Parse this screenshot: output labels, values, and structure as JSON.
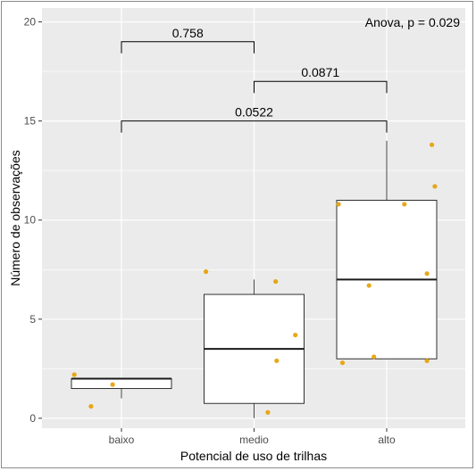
{
  "chart_data": {
    "type": "boxplot",
    "xlabel": "Potencial de uso de trilhas",
    "ylabel": "Número de observações",
    "categories": [
      "baixo",
      "medio",
      "alto"
    ],
    "ylim": [
      -0.5,
      20.7
    ],
    "yticks": [
      0,
      5,
      10,
      15,
      20
    ],
    "grid": true,
    "legend": "none",
    "annotation": "Anova, p = 0.029",
    "boxes": [
      {
        "category": "baixo",
        "min": 1,
        "q1": 1.5,
        "median": 2,
        "q3": 2,
        "max": 2
      },
      {
        "category": "medio",
        "min": 0,
        "q1": 0.75,
        "median": 3.5,
        "q3": 6.25,
        "max": 7
      },
      {
        "category": "alto",
        "min": 3,
        "q1": 3,
        "median": 7,
        "q3": 11,
        "max": 14
      }
    ],
    "points": [
      {
        "category": "baixo",
        "jitter": -0.48,
        "y": 2.2
      },
      {
        "category": "baixo",
        "jitter": -0.31,
        "y": 0.6
      },
      {
        "category": "baixo",
        "jitter": -0.09,
        "y": 1.7
      },
      {
        "category": "medio",
        "jitter": -0.49,
        "y": 7.4
      },
      {
        "category": "medio",
        "jitter": 0.14,
        "y": 0.3
      },
      {
        "category": "medio",
        "jitter": 0.22,
        "y": 6.9
      },
      {
        "category": "medio",
        "jitter": 0.23,
        "y": 2.9
      },
      {
        "category": "medio",
        "jitter": 0.42,
        "y": 4.2
      },
      {
        "category": "alto",
        "jitter": -0.49,
        "y": 10.8
      },
      {
        "category": "alto",
        "jitter": -0.45,
        "y": 2.8
      },
      {
        "category": "alto",
        "jitter": -0.18,
        "y": 6.7
      },
      {
        "category": "alto",
        "jitter": -0.13,
        "y": 3.1
      },
      {
        "category": "alto",
        "jitter": 0.18,
        "y": 10.8
      },
      {
        "category": "alto",
        "jitter": 0.41,
        "y": 7.3
      },
      {
        "category": "alto",
        "jitter": 0.41,
        "y": 2.9
      },
      {
        "category": "alto",
        "jitter": 0.46,
        "y": 13.8
      },
      {
        "category": "alto",
        "jitter": 0.49,
        "y": 11.7
      }
    ],
    "comparisons": [
      {
        "from": "baixo",
        "to": "medio",
        "y": 19.0,
        "label": "0.758"
      },
      {
        "from": "medio",
        "to": "alto",
        "y": 17.0,
        "label": "0.0871"
      },
      {
        "from": "baixo",
        "to": "alto",
        "y": 15.0,
        "label": "0.0522"
      }
    ],
    "colors": {
      "panel": "#ebebeb",
      "grid_major": "#ffffff",
      "box_fill": "#ffffff",
      "box_line": "#1a1a1a",
      "point": "#e69f00",
      "bracket": "#000000"
    }
  }
}
